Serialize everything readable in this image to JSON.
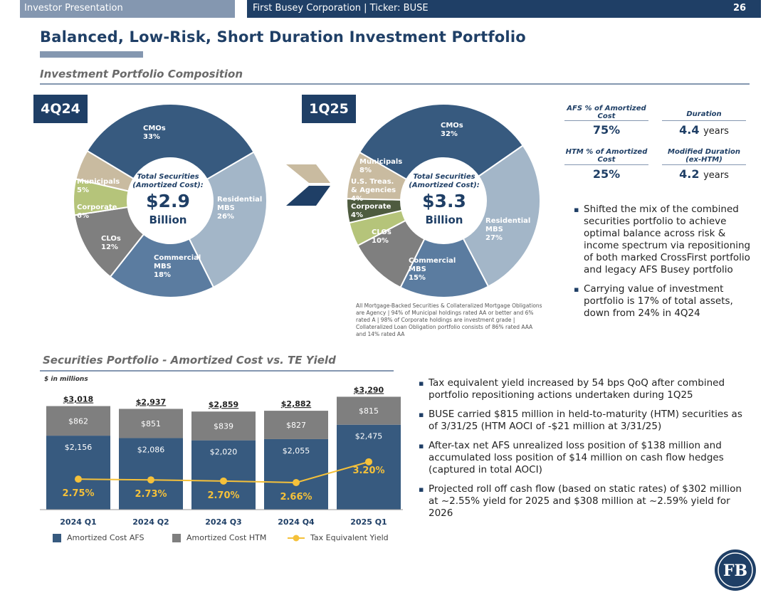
{
  "header": {
    "left_label": "Investor Presentation",
    "right_label": "First Busey Corporation | Ticker: BUSE",
    "page_number": "26"
  },
  "title": "Balanced, Low-Risk, Short Duration Investment Portfolio",
  "composition": {
    "heading": "Investment Portfolio Composition",
    "center_caption": "Total Securities (Amortized Cost):",
    "billion_label": "Billion",
    "q4": {
      "badge": "4Q24",
      "total": "$2.9",
      "slices": [
        {
          "name": "CMOs",
          "pct": "33%",
          "value": 33,
          "color": "#375a7f"
        },
        {
          "name": "Residential MBS",
          "pct": "26%",
          "value": 26,
          "color": "#a3b6c8"
        },
        {
          "name": "Commercial MBS",
          "pct": "18%",
          "value": 18,
          "color": "#5b7ca0"
        },
        {
          "name": "CLOs",
          "pct": "12%",
          "value": 12,
          "color": "#7f7f7f"
        },
        {
          "name": "Corporate",
          "pct": "6%",
          "value": 6,
          "color": "#b5c47a"
        },
        {
          "name": "Municipals",
          "pct": "5%",
          "value": 5,
          "color": "#c9bba0"
        }
      ]
    },
    "q1": {
      "badge": "1Q25",
      "total": "$3.3",
      "slices": [
        {
          "name": "CMOs",
          "pct": "32%",
          "value": 32,
          "color": "#375a7f"
        },
        {
          "name": "Residential MBS",
          "pct": "27%",
          "value": 27,
          "color": "#a3b6c8"
        },
        {
          "name": "Commercial MBS",
          "pct": "15%",
          "value": 15,
          "color": "#5b7ca0"
        },
        {
          "name": "CLOs",
          "pct": "10%",
          "value": 10,
          "color": "#7f7f7f"
        },
        {
          "name": "Corporate",
          "pct": "4%",
          "value": 4,
          "color": "#b5c47a"
        },
        {
          "name": "U.S. Treas. & Agencies",
          "pct": "4%",
          "value": 4,
          "color": "#4e5b3f"
        },
        {
          "name": "Municipals",
          "pct": "8%",
          "value": 8,
          "color": "#c9bba0"
        }
      ]
    },
    "footnote": "All Mortgage-Backed Securities & Collateralized Mortgage Obligations are Agency | 94% of Municipal holdings rated AA or better and 6% rated A | 98% of Corporate holdings are investment grade | Collateralized Loan Obligation portfolio consists of 86% rated AAA and 14% rated AA"
  },
  "metrics": {
    "afs_label": "AFS % of Amortized Cost",
    "afs_value": "75%",
    "duration_label": "Duration",
    "duration_value": "4.4",
    "duration_unit": "years",
    "htm_label": "HTM % of Amortized Cost",
    "htm_value": "25%",
    "mod_duration_label": "Modified Duration (ex-HTM)",
    "mod_duration_value": "4.2",
    "mod_duration_unit": "years"
  },
  "right_bullets": [
    "Shifted the mix of the combined securities portfolio to achieve optimal balance across risk & income spectrum via repositioning of both marked CrossFirst portfolio and legacy AFS Busey portfolio",
    "Carrying value of investment portfolio is 17% of total assets, down from 24% in 4Q24"
  ],
  "chart_section": {
    "heading": "Securities Portfolio - Amortized Cost vs. TE Yield",
    "units_note": "$ in millions"
  },
  "chart_data": {
    "type": "bar",
    "stacked": true,
    "categories": [
      "2024 Q1",
      "2024 Q2",
      "2024 Q3",
      "2024 Q4",
      "2025 Q1"
    ],
    "totals": [
      "$3,018",
      "$2,937",
      "$2,859",
      "$2,882",
      "$3,290"
    ],
    "series": [
      {
        "name": "Amortized Cost AFS",
        "color": "#375a7f",
        "values": [
          2156,
          2086,
          2020,
          2055,
          2475
        ],
        "labels": [
          "$2,156",
          "$2,086",
          "$2,020",
          "$2,055",
          "$2,475"
        ]
      },
      {
        "name": "Amortized Cost HTM",
        "color": "#7f7f7f",
        "values": [
          862,
          851,
          839,
          827,
          815
        ],
        "labels": [
          "$862",
          "$851",
          "$839",
          "$827",
          "$815"
        ]
      }
    ],
    "line": {
      "name": "Tax Equivalent Yield",
      "color": "#f5c13a",
      "values": [
        2.75,
        2.73,
        2.7,
        2.66,
        3.2
      ],
      "labels": [
        "2.75%",
        "2.73%",
        "2.70%",
        "2.66%",
        "3.20%"
      ]
    },
    "legend": "bottom"
  },
  "bottom_bullets": [
    "Tax equivalent yield increased by 54 bps QoQ after combined portfolio repositioning actions undertaken during 1Q25",
    "BUSE carried $815 million in held-to-maturity (HTM) securities as of 3/31/25 (HTM AOCI of -$21 million at 3/31/25)",
    "After-tax net AFS unrealized loss position of $138 million and accumulated loss position of $14 million on cash flow hedges (captured in total AOCI)",
    "Projected roll off cash flow (based on static rates) of $302 million at ~2.55% yield for 2025 and $308 million at ~2.59% yield for 2026"
  ],
  "logo": {
    "letters": "FB",
    "color": "#1f3f66"
  }
}
